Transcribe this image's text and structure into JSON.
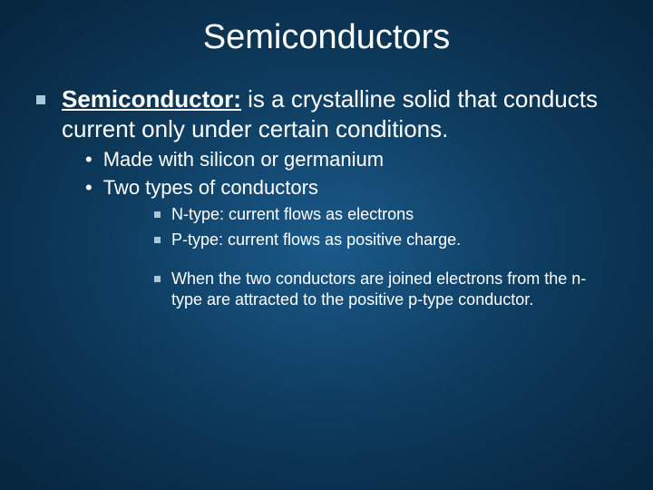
{
  "slide": {
    "background_gradient": [
      "#1a5a8a",
      "#0d3a5c",
      "#06243d"
    ],
    "title": "Semiconductors",
    "title_fontsize": 38,
    "title_color": "#ffffff",
    "body_fontsizes": {
      "level1": 26,
      "level2": 22,
      "level3": 18
    },
    "bullet_color": "#a8c8d8",
    "text_color": "#ffffff",
    "font_family": "Verdana",
    "level1": {
      "term": "Semiconductor:",
      "definition": "  is a crystalline solid that conducts current only under certain conditions."
    },
    "level2": [
      "Made with silicon or germanium",
      "Two types of conductors"
    ],
    "level3_group1": [
      "N-type: current flows as electrons",
      "P-type: current flows as positive charge."
    ],
    "level3_group2": [
      "When the two conductors are joined electrons from the n-type are attracted to the positive p-type conductor."
    ]
  }
}
